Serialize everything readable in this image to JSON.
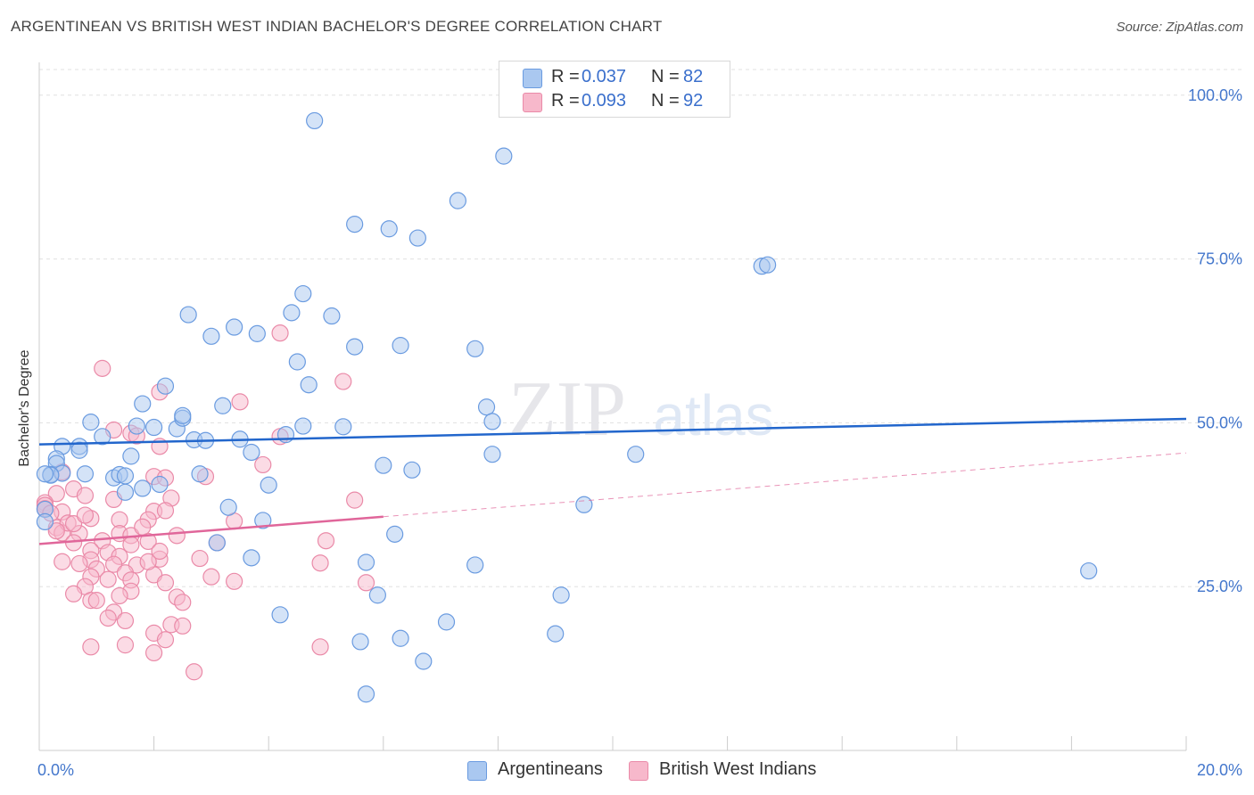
{
  "title": "ARGENTINEAN VS BRITISH WEST INDIAN BACHELOR'S DEGREE CORRELATION CHART",
  "source": "Source: ZipAtlas.com",
  "watermark": {
    "zip": "ZIP",
    "atlas": "atlas"
  },
  "colors": {
    "blue_fill": "#aac8f0",
    "blue_stroke": "#6a9be0",
    "blue_line": "#2266cc",
    "pink_fill": "#f7b8cb",
    "pink_stroke": "#ea8aa8",
    "pink_line": "#e0669a",
    "tick_text": "#4477cc",
    "grid": "#e0e0e0"
  },
  "legend": {
    "r_label": "R =",
    "n_label": "N =",
    "series": [
      {
        "name": "Argentineans",
        "r": "0.037",
        "n": "82"
      },
      {
        "name": "British West Indians",
        "r": "0.093",
        "n": "92"
      }
    ]
  },
  "chart_data": {
    "type": "scatter",
    "title": "ARGENTINEAN VS BRITISH WEST INDIAN BACHELOR'S DEGREE CORRELATION CHART",
    "xlabel": "",
    "ylabel": "Bachelor's Degree",
    "xlim": [
      0,
      20
    ],
    "ylim": [
      0,
      105
    ],
    "x_tick_labels": {
      "left": "0.0%",
      "right": "20.0%"
    },
    "y_ticks": [
      {
        "value": 25,
        "label": "25.0%"
      },
      {
        "value": 50,
        "label": "50.0%"
      },
      {
        "value": 75,
        "label": "75.0%"
      },
      {
        "value": 100,
        "label": "100.0%"
      }
    ],
    "series": [
      {
        "name": "Argentineans",
        "color": "#aac8f0",
        "trend": {
          "x0": 0.0,
          "y0": 46.7,
          "x1": 20.0,
          "y1": 50.6,
          "dashed_from": null
        },
        "points": [
          [
            4.8,
            96.1
          ],
          [
            8.1,
            90.7
          ],
          [
            7.3,
            83.9
          ],
          [
            5.5,
            80.3
          ],
          [
            6.1,
            79.6
          ],
          [
            6.6,
            78.2
          ],
          [
            12.6,
            73.9
          ],
          [
            12.7,
            74.1
          ],
          [
            4.6,
            69.7
          ],
          [
            4.4,
            66.8
          ],
          [
            5.1,
            66.3
          ],
          [
            2.6,
            66.5
          ],
          [
            3.4,
            64.6
          ],
          [
            3.8,
            63.6
          ],
          [
            3.0,
            63.2
          ],
          [
            5.5,
            61.6
          ],
          [
            6.3,
            61.8
          ],
          [
            7.6,
            61.3
          ],
          [
            4.5,
            59.3
          ],
          [
            2.2,
            55.6
          ],
          [
            4.7,
            55.8
          ],
          [
            1.8,
            52.9
          ],
          [
            3.2,
            52.6
          ],
          [
            7.8,
            52.4
          ],
          [
            0.9,
            50.1
          ],
          [
            1.7,
            49.5
          ],
          [
            2.0,
            49.3
          ],
          [
            2.4,
            49.1
          ],
          [
            2.5,
            50.7
          ],
          [
            2.5,
            51.1
          ],
          [
            4.6,
            49.5
          ],
          [
            5.3,
            49.4
          ],
          [
            7.9,
            50.2
          ],
          [
            1.1,
            47.9
          ],
          [
            2.7,
            47.4
          ],
          [
            2.9,
            47.3
          ],
          [
            3.5,
            47.5
          ],
          [
            4.3,
            48.2
          ],
          [
            0.4,
            46.4
          ],
          [
            0.7,
            46.4
          ],
          [
            0.3,
            44.5
          ],
          [
            0.7,
            45.8
          ],
          [
            1.6,
            44.9
          ],
          [
            3.7,
            45.5
          ],
          [
            7.9,
            45.2
          ],
          [
            10.4,
            45.2
          ],
          [
            0.3,
            43.8
          ],
          [
            6.0,
            43.5
          ],
          [
            6.5,
            42.8
          ],
          [
            0.2,
            42.1
          ],
          [
            0.4,
            42.3
          ],
          [
            0.8,
            42.2
          ],
          [
            1.3,
            41.6
          ],
          [
            1.4,
            42.1
          ],
          [
            1.5,
            41.9
          ],
          [
            2.8,
            42.2
          ],
          [
            4.0,
            40.5
          ],
          [
            2.1,
            40.6
          ],
          [
            1.8,
            40.0
          ],
          [
            1.5,
            39.4
          ],
          [
            9.5,
            37.5
          ],
          [
            3.3,
            37.1
          ],
          [
            0.1,
            36.8
          ],
          [
            0.1,
            34.9
          ],
          [
            3.9,
            35.1
          ],
          [
            6.2,
            33.0
          ],
          [
            3.1,
            31.7
          ],
          [
            3.7,
            29.4
          ],
          [
            5.7,
            28.7
          ],
          [
            7.6,
            28.3
          ],
          [
            18.3,
            27.4
          ],
          [
            5.9,
            23.7
          ],
          [
            9.1,
            23.7
          ],
          [
            4.2,
            20.7
          ],
          [
            7.1,
            19.6
          ],
          [
            9.0,
            17.8
          ],
          [
            5.6,
            16.6
          ],
          [
            6.3,
            17.1
          ],
          [
            6.7,
            13.6
          ],
          [
            5.7,
            8.6
          ],
          [
            0.2,
            42.0
          ],
          [
            0.1,
            42.2
          ]
        ]
      },
      {
        "name": "British West Indians",
        "color": "#f7b8cb",
        "trend": {
          "x0": 0.0,
          "y0": 31.5,
          "x1": 20.0,
          "y1": 45.4,
          "dashed_from": 6.0
        },
        "points": [
          [
            4.2,
            63.7
          ],
          [
            1.1,
            58.3
          ],
          [
            5.3,
            56.3
          ],
          [
            2.1,
            54.7
          ],
          [
            3.5,
            53.2
          ],
          [
            1.3,
            48.9
          ],
          [
            1.6,
            48.4
          ],
          [
            1.7,
            48.0
          ],
          [
            4.2,
            47.9
          ],
          [
            2.1,
            46.4
          ],
          [
            3.9,
            43.6
          ],
          [
            0.4,
            42.5
          ],
          [
            2.0,
            41.8
          ],
          [
            2.2,
            41.6
          ],
          [
            2.9,
            41.8
          ],
          [
            0.6,
            39.9
          ],
          [
            0.3,
            39.2
          ],
          [
            0.8,
            38.9
          ],
          [
            1.3,
            38.3
          ],
          [
            2.3,
            38.5
          ],
          [
            5.5,
            38.2
          ],
          [
            0.1,
            37.8
          ],
          [
            0.1,
            37.4
          ],
          [
            0.1,
            36.9
          ],
          [
            0.4,
            36.4
          ],
          [
            2.0,
            36.5
          ],
          [
            2.2,
            36.6
          ],
          [
            0.9,
            35.4
          ],
          [
            1.4,
            35.2
          ],
          [
            1.9,
            35.2
          ],
          [
            3.4,
            35.0
          ],
          [
            0.3,
            34.0
          ],
          [
            0.4,
            33.2
          ],
          [
            0.7,
            33.1
          ],
          [
            1.4,
            33.1
          ],
          [
            1.6,
            32.8
          ],
          [
            2.4,
            32.8
          ],
          [
            1.1,
            32.0
          ],
          [
            1.9,
            31.9
          ],
          [
            3.1,
            31.7
          ],
          [
            5.0,
            32.0
          ],
          [
            0.6,
            31.7
          ],
          [
            0.9,
            30.5
          ],
          [
            1.2,
            30.2
          ],
          [
            1.4,
            29.6
          ],
          [
            0.9,
            29.1
          ],
          [
            2.1,
            29.2
          ],
          [
            2.8,
            29.3
          ],
          [
            0.4,
            28.8
          ],
          [
            0.7,
            28.5
          ],
          [
            1.3,
            28.4
          ],
          [
            1.7,
            28.3
          ],
          [
            4.9,
            28.6
          ],
          [
            1.0,
            27.7
          ],
          [
            1.5,
            27.1
          ],
          [
            0.9,
            26.5
          ],
          [
            1.2,
            26.1
          ],
          [
            1.6,
            26.0
          ],
          [
            2.0,
            26.8
          ],
          [
            2.2,
            25.6
          ],
          [
            3.4,
            25.8
          ],
          [
            5.7,
            25.6
          ],
          [
            0.8,
            25.0
          ],
          [
            1.6,
            24.3
          ],
          [
            0.6,
            23.9
          ],
          [
            1.4,
            23.6
          ],
          [
            2.4,
            23.4
          ],
          [
            0.9,
            22.9
          ],
          [
            2.5,
            22.6
          ],
          [
            1.3,
            21.1
          ],
          [
            1.2,
            20.2
          ],
          [
            1.5,
            19.8
          ],
          [
            2.3,
            19.2
          ],
          [
            2.0,
            17.9
          ],
          [
            2.2,
            16.9
          ],
          [
            1.5,
            16.1
          ],
          [
            0.9,
            15.8
          ],
          [
            4.9,
            15.8
          ],
          [
            2.0,
            14.9
          ],
          [
            2.7,
            12.0
          ],
          [
            0.5,
            34.7
          ],
          [
            0.6,
            34.6
          ],
          [
            0.3,
            33.5
          ],
          [
            0.2,
            36.2
          ],
          [
            0.8,
            35.9
          ],
          [
            1.8,
            34.1
          ],
          [
            1.6,
            31.4
          ],
          [
            1.9,
            28.8
          ],
          [
            2.1,
            30.4
          ],
          [
            3.0,
            26.5
          ],
          [
            1.0,
            22.9
          ],
          [
            2.5,
            19.0
          ]
        ]
      }
    ]
  }
}
